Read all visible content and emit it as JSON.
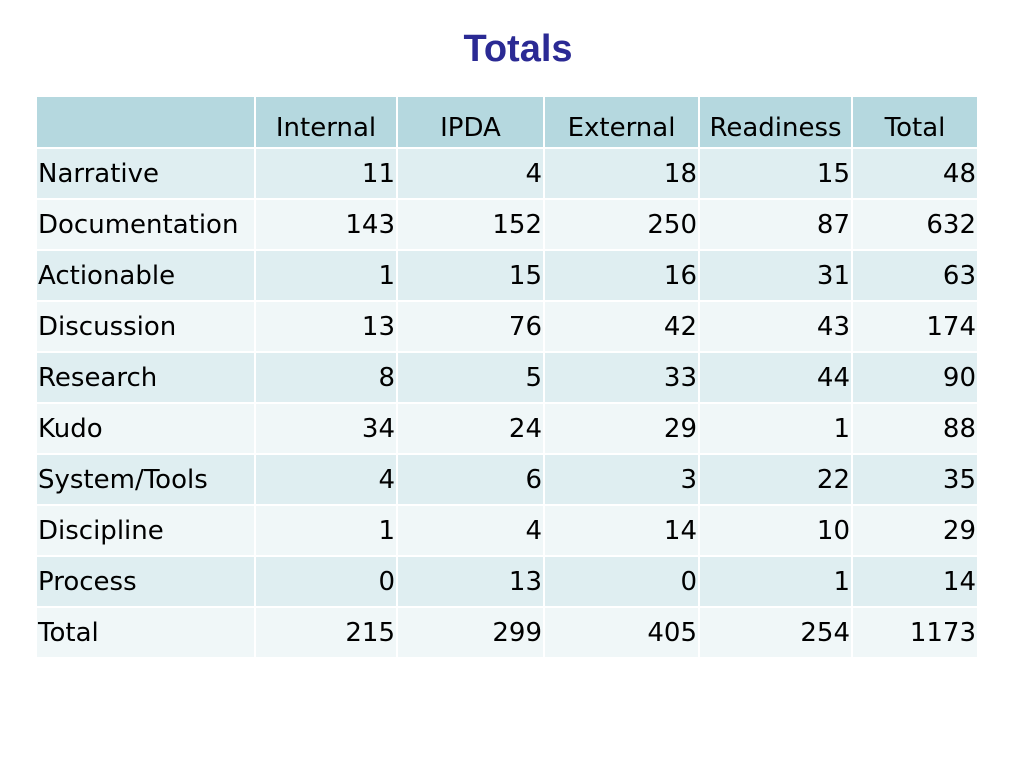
{
  "title": "Totals",
  "colors": {
    "title": "#2b2a94",
    "header_bg": "#b5d8df",
    "row_odd_bg": "#dfeef1",
    "row_even_bg": "#f0f7f8"
  },
  "table": {
    "headers": [
      "",
      "Internal",
      "IPDA",
      "External",
      "Readiness",
      "Total"
    ],
    "rows": [
      {
        "label": "Narrative",
        "values": [
          "11",
          "4",
          "18",
          "15",
          "48"
        ]
      },
      {
        "label": "Documentation",
        "values": [
          "143",
          "152",
          "250",
          "87",
          "632"
        ]
      },
      {
        "label": "Actionable",
        "values": [
          "1",
          "15",
          "16",
          "31",
          "63"
        ]
      },
      {
        "label": "Discussion",
        "values": [
          "13",
          "76",
          "42",
          "43",
          "174"
        ]
      },
      {
        "label": "Research",
        "values": [
          "8",
          "5",
          "33",
          "44",
          "90"
        ]
      },
      {
        "label": "Kudo",
        "values": [
          "34",
          "24",
          "29",
          "1",
          "88"
        ]
      },
      {
        "label": "System/Tools",
        "values": [
          "4",
          "6",
          "3",
          "22",
          "35"
        ]
      },
      {
        "label": "Discipline",
        "values": [
          "1",
          "4",
          "14",
          "10",
          "29"
        ]
      },
      {
        "label": "Process",
        "values": [
          "0",
          "13",
          "0",
          "1",
          "14"
        ]
      },
      {
        "label": "Total",
        "values": [
          "215",
          "299",
          "405",
          "254",
          "1173"
        ]
      }
    ]
  }
}
